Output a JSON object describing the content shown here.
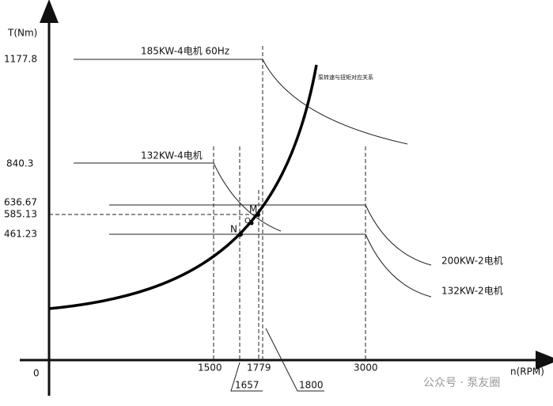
{
  "axes": {
    "y_label": "T(Nm)",
    "x_label": "n(RPM)",
    "origin": "0",
    "y_ticks": [
      "1177.8",
      "840.3",
      "636.67",
      "585.13",
      "461.23"
    ],
    "x_ticks": [
      "1500",
      "1779",
      "3000"
    ],
    "x_callouts": [
      "1657",
      "1800"
    ]
  },
  "curves": {
    "motor_185kw_4": "185KW-4电机 60Hz",
    "motor_132kw_4": "132KW-4电机",
    "motor_200kw_2": "200KW-2电机",
    "motor_132kw_2": "132KW-2电机",
    "pump": "泵转速与扭矩对应关系"
  },
  "points": [
    "M",
    "Q",
    "N"
  ],
  "watermark": "公众号 · 泵友圈"
}
